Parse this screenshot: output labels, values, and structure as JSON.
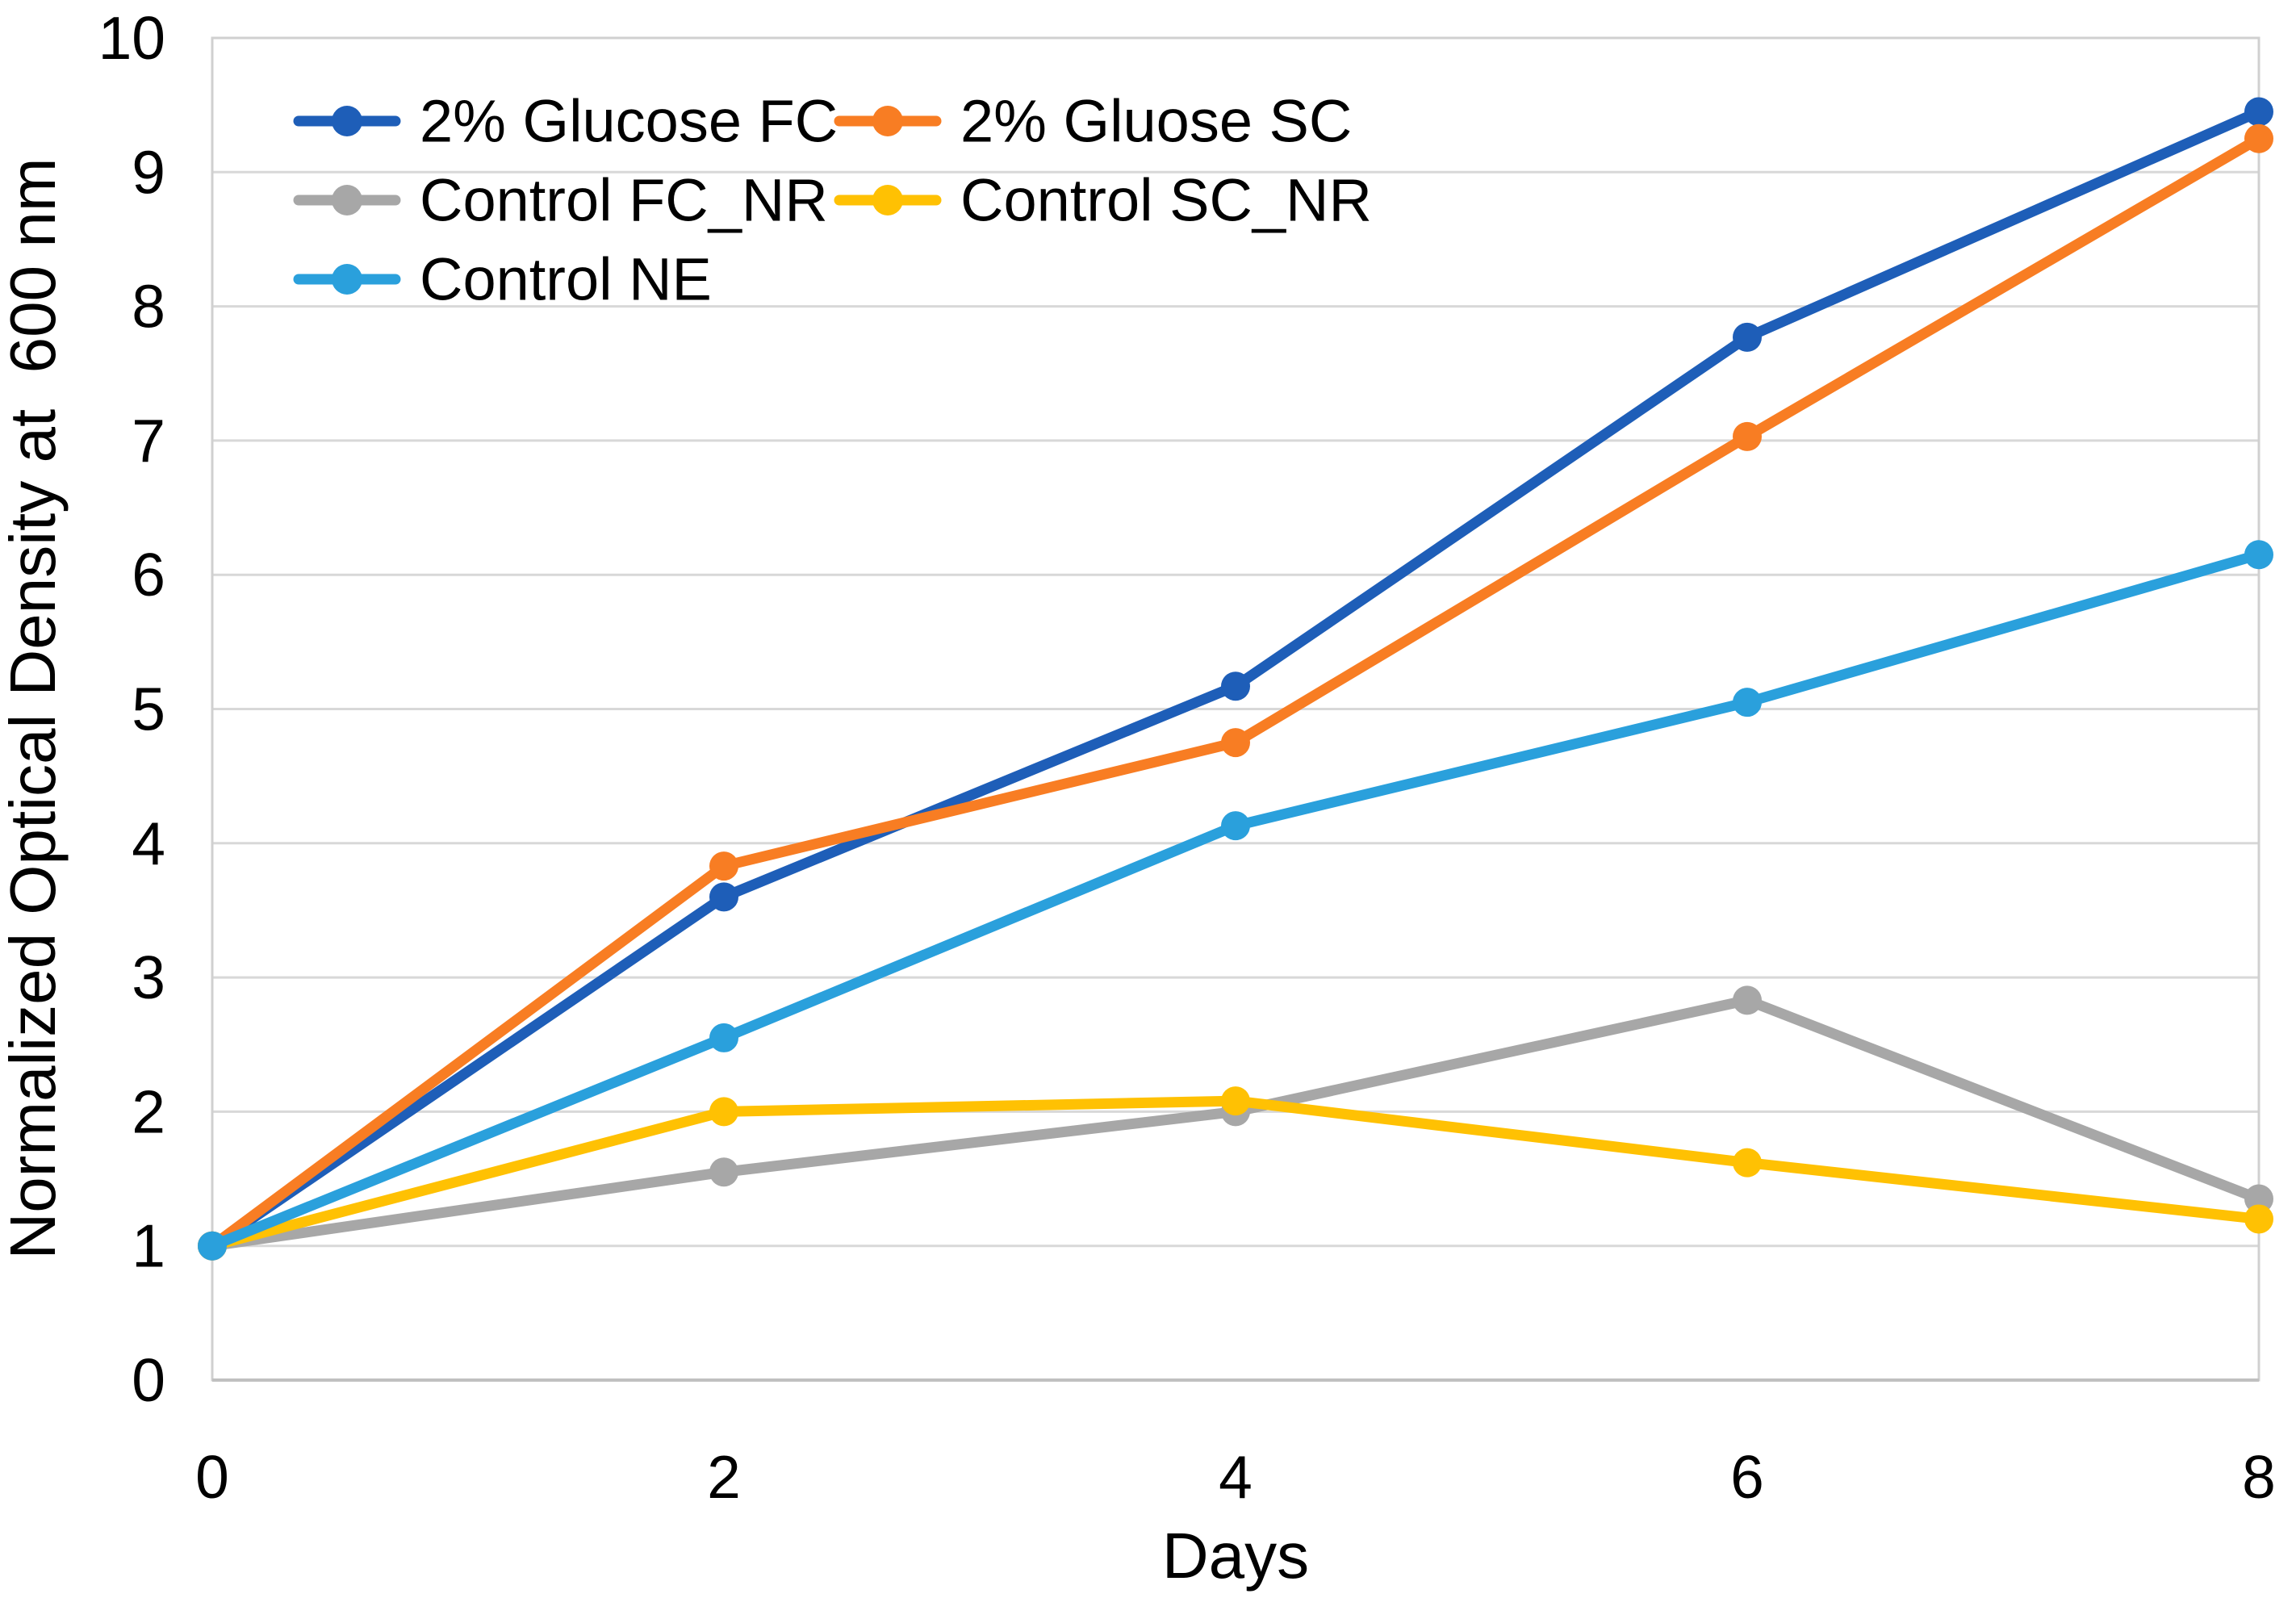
{
  "chart_data": {
    "type": "line",
    "title": "",
    "xlabel": "Days",
    "ylabel": "Normalized Optical Density at  600 nm",
    "x": [
      0,
      2,
      4,
      6,
      8
    ],
    "xlim": [
      0,
      8
    ],
    "ylim": [
      0,
      10
    ],
    "x_ticks": [
      0,
      2,
      4,
      6,
      8
    ],
    "y_ticks": [
      0,
      1,
      2,
      3,
      4,
      5,
      6,
      7,
      8,
      9,
      10
    ],
    "grid": "horizontal",
    "legend_position": "inside-top-left",
    "legend_columns": 2,
    "series": [
      {
        "name": "2% Glucose FC",
        "color": "#1E5EB8",
        "marker": "circle",
        "values": [
          1.0,
          3.6,
          5.17,
          7.77,
          9.45
        ]
      },
      {
        "name": "2% Gluose SC",
        "color": "#F87D23",
        "marker": "circle",
        "values": [
          1.0,
          3.83,
          4.75,
          7.03,
          9.25
        ]
      },
      {
        "name": "Control FC_NR",
        "color": "#A7A7A7",
        "marker": "circle",
        "values": [
          1.0,
          1.55,
          2.0,
          2.83,
          1.35
        ]
      },
      {
        "name": "Control SC_NR",
        "color": "#FFC103",
        "marker": "circle",
        "values": [
          1.0,
          2.0,
          2.08,
          1.62,
          1.2
        ]
      },
      {
        "name": "Control NE",
        "color": "#2AA0DC",
        "marker": "circle",
        "values": [
          1.0,
          2.55,
          4.13,
          5.05,
          6.15
        ]
      }
    ],
    "colors": {
      "background": "#FFFFFF",
      "gridline": "#D8D8D8",
      "plot_border": "#D0D0D0",
      "axis_line": "#C0C0C0",
      "text": "#000000"
    }
  }
}
